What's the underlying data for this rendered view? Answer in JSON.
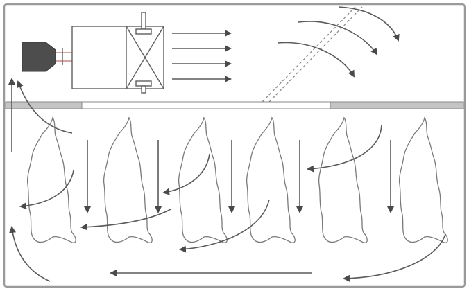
{
  "diagram": {
    "components": {
      "motor": "motor",
      "fan_housing": "fan-housing",
      "cooling_coil": "cooling-coil",
      "ceiling_panel": "ceiling-panel",
      "air_inlet_duct": "air-inlet-duct"
    },
    "carcass_count": 6,
    "colors": {
      "line": "#5a5a5a",
      "panel": "#c4c4c4",
      "frame": "#9a9a9a",
      "motor": "#4d4d4d"
    }
  }
}
